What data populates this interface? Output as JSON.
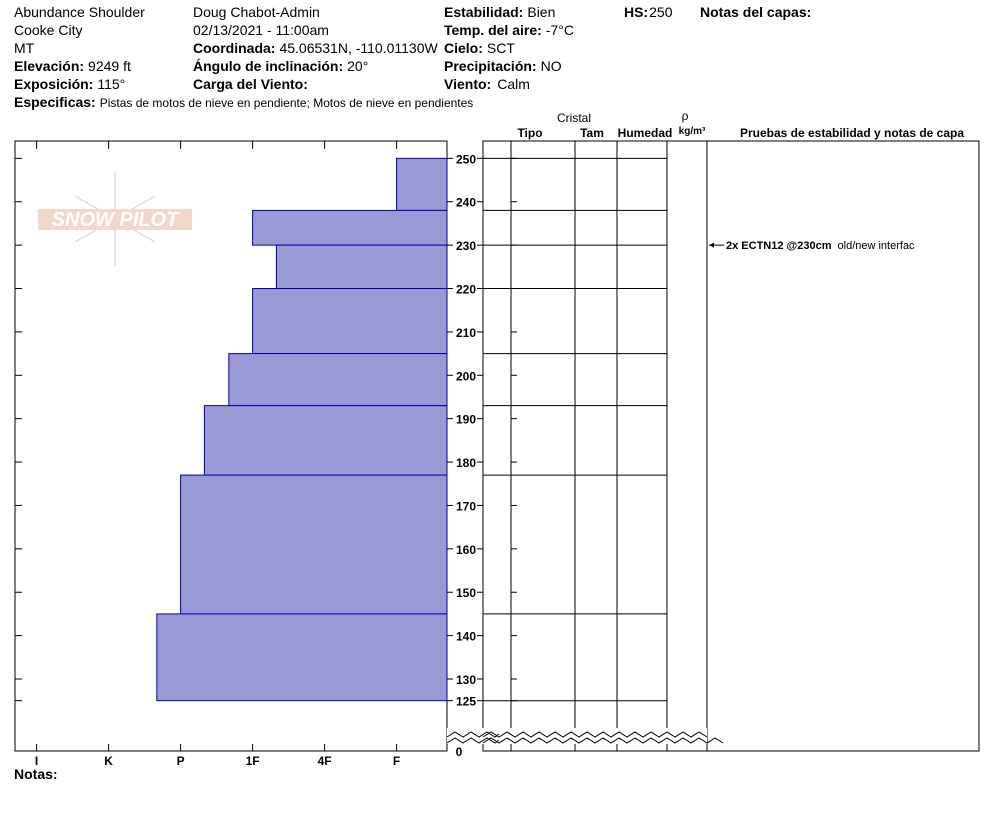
{
  "header": {
    "location": "Abundance Shoulder",
    "city": "Cooke City",
    "state": "MT",
    "observer": "Doug Chabot-Admin",
    "datetime": "02/13/2021 - 11:00am",
    "elevation": {
      "label": "Elevación:",
      "value": "9249 ft"
    },
    "aspect": {
      "label": "Exposición:",
      "value": "115°"
    },
    "coordinates": {
      "label": "Coordinada:",
      "value": "45.06531N, -110.01130W"
    },
    "slope_angle": {
      "label": "Ángulo de inclinación:",
      "value": "20°"
    },
    "wind_loading": {
      "label": "Carga del Viento:"
    },
    "stability": {
      "label": "Estabilidad:",
      "value": "Bien"
    },
    "air_temp": {
      "label": "Temp. del aire:",
      "value": "-7°C"
    },
    "sky": {
      "label": "Cielo:",
      "value": "SCT"
    },
    "precipitation": {
      "label": "Precipitación:",
      "value": "NO"
    },
    "wind": {
      "label": "Viento:",
      "value": "Calm"
    },
    "hs": {
      "label": "HS:",
      "value": "250"
    },
    "layer_notes": "Notas del capas:",
    "specifics": {
      "label": "Especificas:",
      "value": "Pistas de motos de nieve en pendiente; Motos de nieve en pendientes"
    }
  },
  "columns": {
    "crystal": "Cristal",
    "type": "Tipo",
    "size": "Tam",
    "moisture": "Humedad",
    "rho": "ρ",
    "density": "kg/m³",
    "tests": "Pruebas de estabilidad y notas de capa"
  },
  "logo": "SNOW PILOT",
  "notes": "Notas:",
  "chart_data": {
    "type": "snowprofile",
    "layers": [
      {
        "top": 250,
        "bottom": 238,
        "hardness": 1
      },
      {
        "top": 238,
        "bottom": 230,
        "hardness": 3
      },
      {
        "top": 230,
        "bottom": 220,
        "hardness": 2.67
      },
      {
        "top": 220,
        "bottom": 205,
        "hardness": 3
      },
      {
        "top": 205,
        "bottom": 193,
        "hardness": 3.33
      },
      {
        "top": 193,
        "bottom": 177,
        "hardness": 3.67
      },
      {
        "top": 177,
        "bottom": 145,
        "hardness": 4
      },
      {
        "top": 145,
        "bottom": 125,
        "hardness": 4.33
      }
    ],
    "color": "#9999d6",
    "xlim": [
      6.3,
      0.3
    ],
    "xticks": [
      {
        "value": 6,
        "label": "I"
      },
      {
        "value": 5,
        "label": "K"
      },
      {
        "value": 4,
        "label": "P"
      },
      {
        "value": 3,
        "label": "1F"
      },
      {
        "value": 2,
        "label": "4F"
      },
      {
        "value": 1,
        "label": "F"
      }
    ],
    "ylim": [
      125,
      254
    ],
    "yticks": [
      250,
      240,
      230,
      220,
      210,
      200,
      190,
      180,
      170,
      160,
      150,
      140,
      130,
      125
    ],
    "ground": 0,
    "tests": [
      {
        "depth": 230,
        "result": "2x ECTN12 @230cm",
        "comment": "old/new interfac"
      }
    ]
  }
}
